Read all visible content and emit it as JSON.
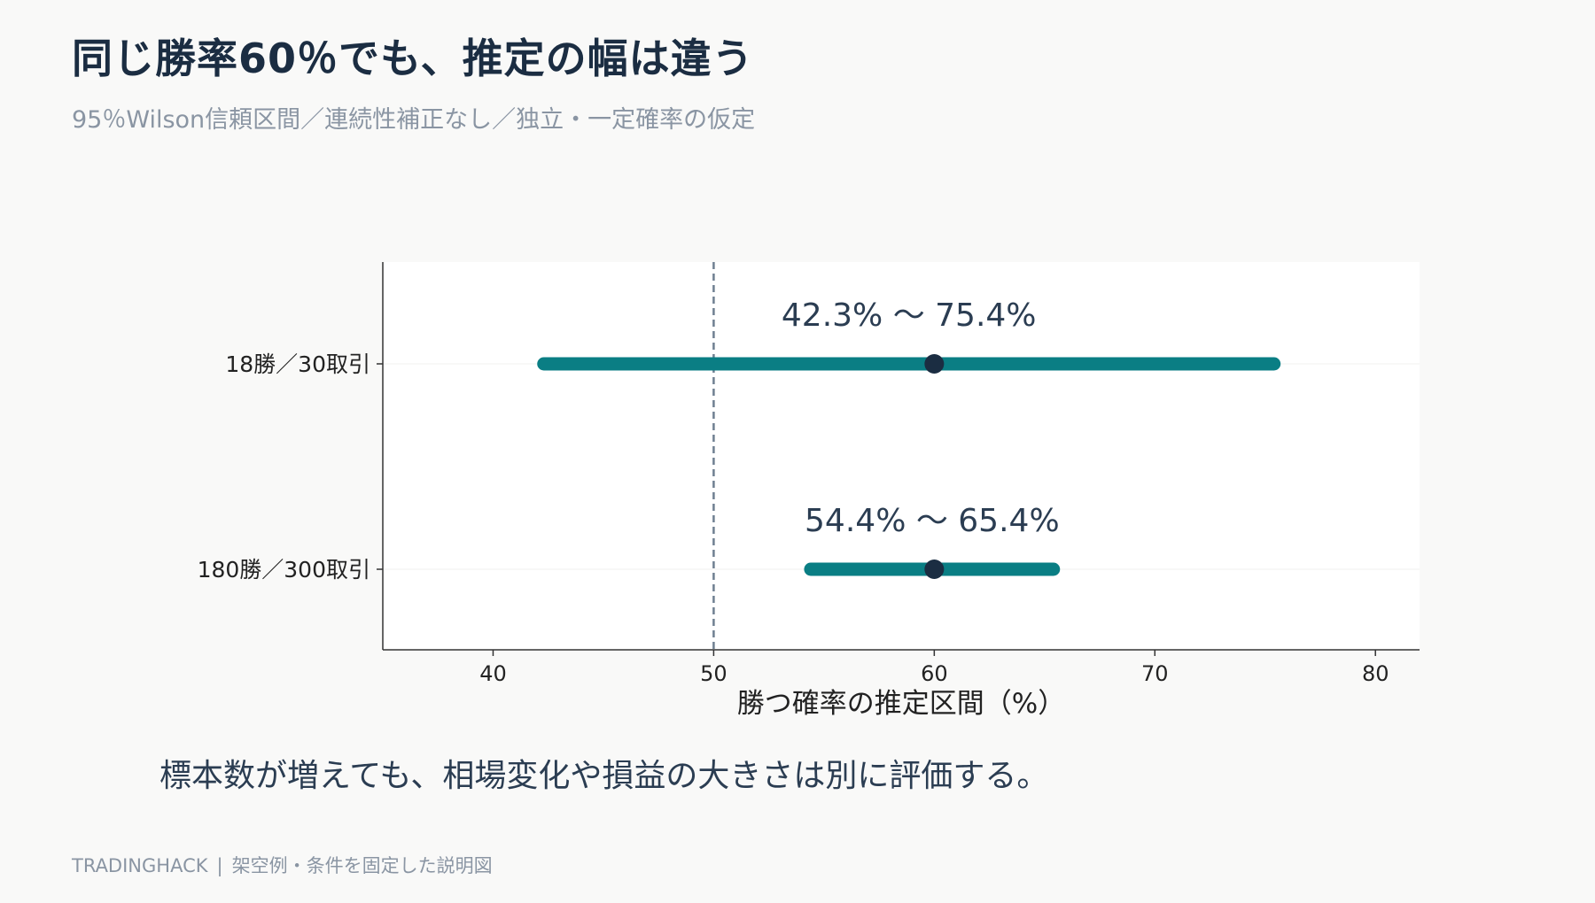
{
  "title": "同じ勝率60％でも、推定の幅は違う",
  "subtitle": "95％Wilson信頼区間／連続性補正なし／独立・一定確率の仮定",
  "note": "標本数が増えても、相場変化や損益の大きさは別に評価する。",
  "footer": {
    "brand": "TRADINGHACK",
    "separator": "|",
    "text": "架空例・条件を固定した説明図"
  },
  "colors": {
    "background": "#f9f9f8",
    "plot_background": "#ffffff",
    "interval": "#0a7e84",
    "point": "#1b2d42",
    "reference_line": "#6f7f91",
    "title": "#1b2d42",
    "muted": "#8a95a3"
  },
  "chart_data": {
    "type": "interval",
    "title": "",
    "xlabel": "勝つ確率の推定区間（%）",
    "ylabel": "",
    "xlim": [
      35,
      82
    ],
    "xticks": [
      40,
      50,
      60,
      70,
      80
    ],
    "reference_x": 50,
    "grid": false,
    "series": [
      {
        "category": "18勝／30取引",
        "point": 60.0,
        "low": 42.3,
        "high": 75.4,
        "label": "42.3% 〜 75.4%"
      },
      {
        "category": "180勝／300取引",
        "point": 60.0,
        "low": 54.4,
        "high": 65.4,
        "label": "54.4% 〜 65.4%"
      }
    ]
  }
}
